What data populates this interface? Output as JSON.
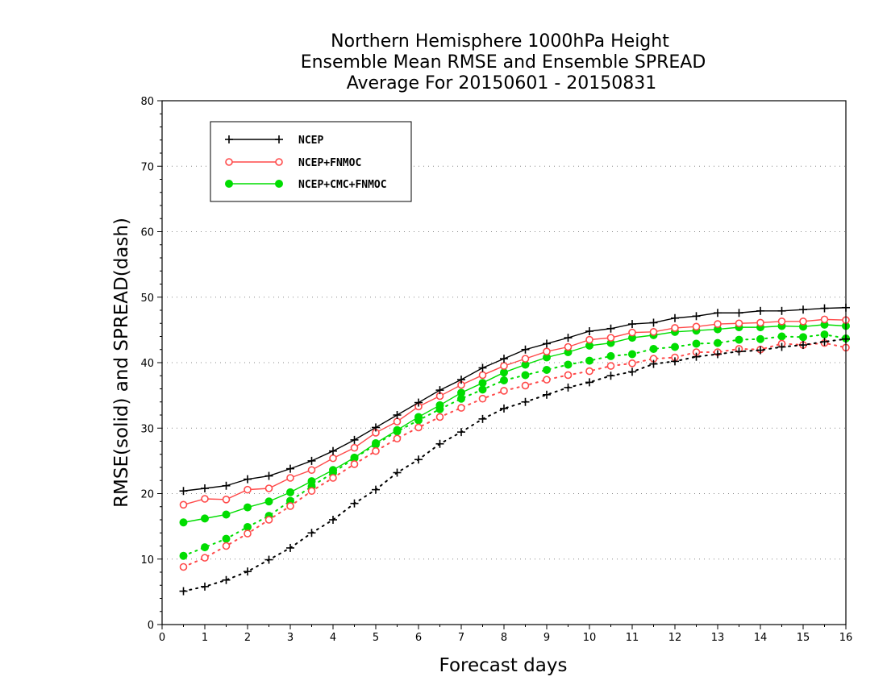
{
  "chart_data": {
    "type": "line",
    "title": [
      "Northern Hemisphere 1000hPa Height",
      "Ensemble Mean RMSE and Ensemble SPREAD",
      "Average For 20150601 - 20150831"
    ],
    "xlabel": "Forecast days",
    "ylabel": "RMSE(solid) and SPREAD(dash)",
    "xlim": [
      0,
      16
    ],
    "ylim": [
      0,
      80
    ],
    "xticks": [
      0,
      1,
      2,
      3,
      4,
      5,
      6,
      7,
      8,
      9,
      10,
      11,
      12,
      13,
      14,
      15,
      16
    ],
    "yticks": [
      0,
      10,
      20,
      30,
      40,
      50,
      60,
      70,
      80
    ],
    "grid": "horizontal dotted",
    "legend_position": "top-left",
    "x": [
      0.5,
      1,
      1.5,
      2,
      2.5,
      3,
      3.5,
      4,
      4.5,
      5,
      5.5,
      6,
      6.5,
      7,
      7.5,
      8,
      8.5,
      9,
      9.5,
      10,
      10.5,
      11,
      11.5,
      12,
      12.5,
      13,
      13.5,
      14,
      14.5,
      15,
      15.5,
      16
    ],
    "series": [
      {
        "name": "NCEP",
        "color": "#000000",
        "marker": "plus",
        "rmse": [
          20.4,
          20.8,
          21.2,
          22.2,
          22.7,
          23.8,
          25.0,
          26.5,
          28.2,
          30.1,
          32.0,
          33.9,
          35.8,
          37.4,
          39.2,
          40.6,
          42.0,
          42.9,
          43.8,
          44.8,
          45.2,
          45.9,
          46.1,
          46.8,
          47.1,
          47.6,
          47.6,
          47.9,
          47.9,
          48.1,
          48.3,
          48.4
        ],
        "spread": [
          5.1,
          5.8,
          6.8,
          8.1,
          9.9,
          11.7,
          14.0,
          16.0,
          18.5,
          20.6,
          23.2,
          25.2,
          27.6,
          29.4,
          31.4,
          33.0,
          34.0,
          35.1,
          36.2,
          37.0,
          38.0,
          38.6,
          39.8,
          40.2,
          40.9,
          41.3,
          41.7,
          41.9,
          42.4,
          42.7,
          43.2,
          43.6
        ]
      },
      {
        "name": "NCEP+FNMOC",
        "color": "#ff4a4a",
        "marker": "open-circle",
        "rmse": [
          18.3,
          19.2,
          19.1,
          20.6,
          20.8,
          22.4,
          23.6,
          25.4,
          27.0,
          29.3,
          31.0,
          33.3,
          34.9,
          36.6,
          38.1,
          39.5,
          40.6,
          41.7,
          42.4,
          43.5,
          43.8,
          44.6,
          44.7,
          45.3,
          45.5,
          45.9,
          46.0,
          46.1,
          46.3,
          46.3,
          46.6,
          46.5
        ],
        "spread": [
          8.8,
          10.2,
          12.0,
          13.9,
          16.0,
          18.1,
          20.4,
          22.4,
          24.5,
          26.5,
          28.4,
          30.1,
          31.7,
          33.1,
          34.5,
          35.7,
          36.5,
          37.4,
          38.1,
          38.7,
          39.5,
          39.9,
          40.6,
          40.8,
          41.6,
          41.6,
          42.1,
          42.0,
          42.9,
          42.7,
          43.0,
          42.3
        ]
      },
      {
        "name": "NCEP+CMC+FNMOC",
        "color": "#00dd00",
        "marker": "filled-circle",
        "rmse": [
          15.6,
          16.2,
          16.8,
          17.9,
          18.8,
          20.2,
          21.9,
          23.6,
          25.5,
          27.7,
          29.7,
          31.7,
          33.5,
          35.4,
          36.9,
          38.5,
          39.7,
          40.8,
          41.6,
          42.6,
          43.0,
          43.8,
          44.2,
          44.7,
          44.9,
          45.1,
          45.4,
          45.4,
          45.6,
          45.5,
          45.8,
          45.6
        ],
        "spread": [
          10.5,
          11.8,
          13.1,
          14.9,
          16.6,
          18.9,
          21.1,
          23.2,
          25.4,
          27.5,
          29.5,
          31.2,
          32.9,
          34.5,
          35.9,
          37.3,
          38.1,
          38.9,
          39.7,
          40.3,
          41.0,
          41.3,
          42.1,
          42.4,
          42.9,
          43.0,
          43.5,
          43.6,
          44.0,
          43.9,
          44.3,
          43.7
        ]
      }
    ]
  }
}
